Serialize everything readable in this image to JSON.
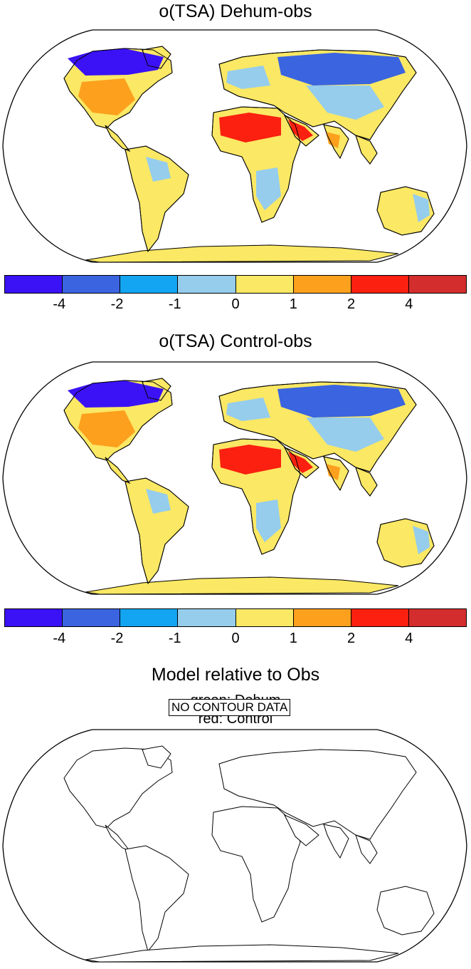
{
  "panels": [
    {
      "title": "o(TSA) Dehum-obs"
    },
    {
      "title": "o(TSA) Control-obs"
    },
    {
      "title": "Model relative to Obs",
      "legend_lines": [
        "green: Dehum",
        "red: Control"
      ],
      "message": "NO CONTOUR DATA"
    }
  ],
  "colorbar": {
    "colors": [
      "#3b12f5",
      "#3a64e0",
      "#13a5f2",
      "#96cdec",
      "#fbe864",
      "#fca01e",
      "#fb2010",
      "#d42d2d"
    ],
    "tick_labels": [
      "-4",
      "-2",
      "-1",
      "0",
      "1",
      "2",
      "4"
    ]
  },
  "map_colors": {
    "very_cold": "#3b12f5",
    "cold": "#3a64e0",
    "cool": "#13a5f2",
    "slightly_cool": "#96cdec",
    "slightly_warm": "#fbe864",
    "warm": "#fca01e",
    "hot": "#fb2010"
  }
}
